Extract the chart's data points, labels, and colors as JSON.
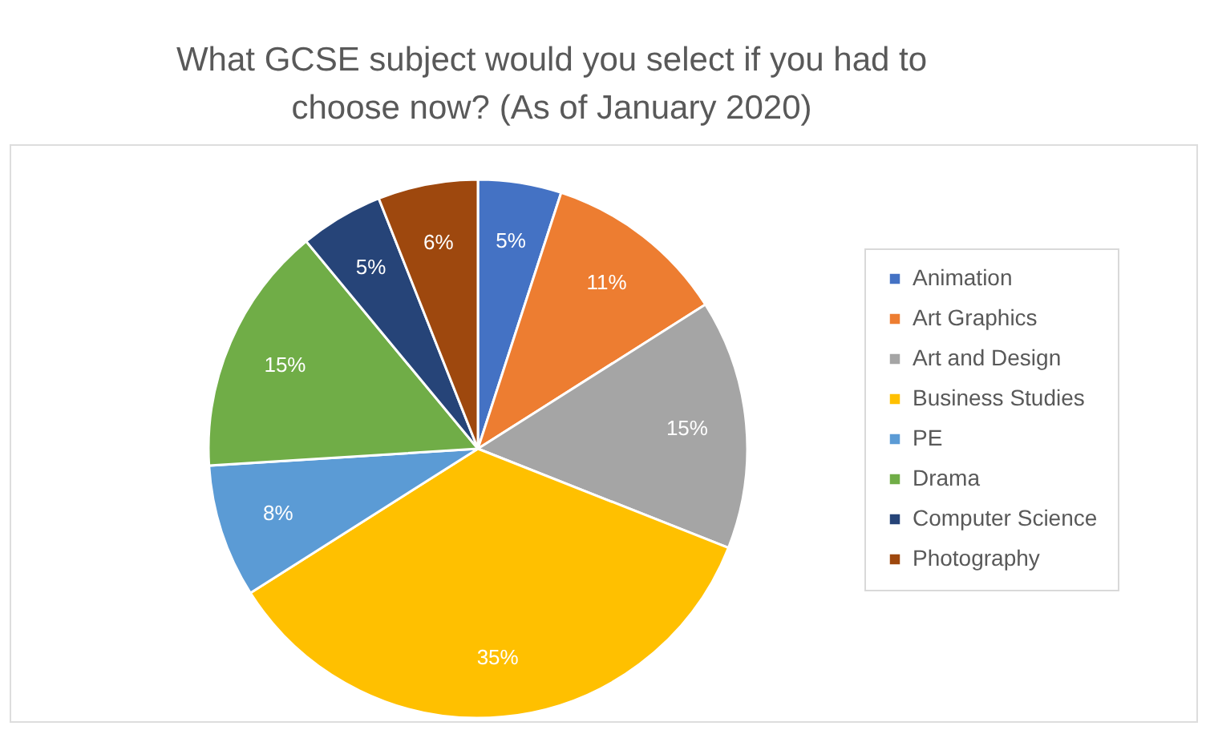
{
  "chart_data": {
    "type": "pie",
    "title": [
      "What GCSE subject would you select if you had to",
      "choose now? (As of January 2020)"
    ],
    "categories": [
      "Animation",
      "Art Graphics",
      "Art and Design",
      "Business Studies",
      "PE",
      "Drama",
      "Computer Science",
      "Photography"
    ],
    "values": [
      5,
      11,
      15,
      35,
      8,
      15,
      5,
      6
    ],
    "value_labels": [
      "5%",
      "11%",
      "15%",
      "35%",
      "8%",
      "15%",
      "5%",
      "6%"
    ],
    "colors": [
      "#4472c4",
      "#ed7d31",
      "#a5a5a5",
      "#ffc000",
      "#5b9bd5",
      "#70ad47",
      "#264478",
      "#9e480e"
    ],
    "legend": "right"
  }
}
